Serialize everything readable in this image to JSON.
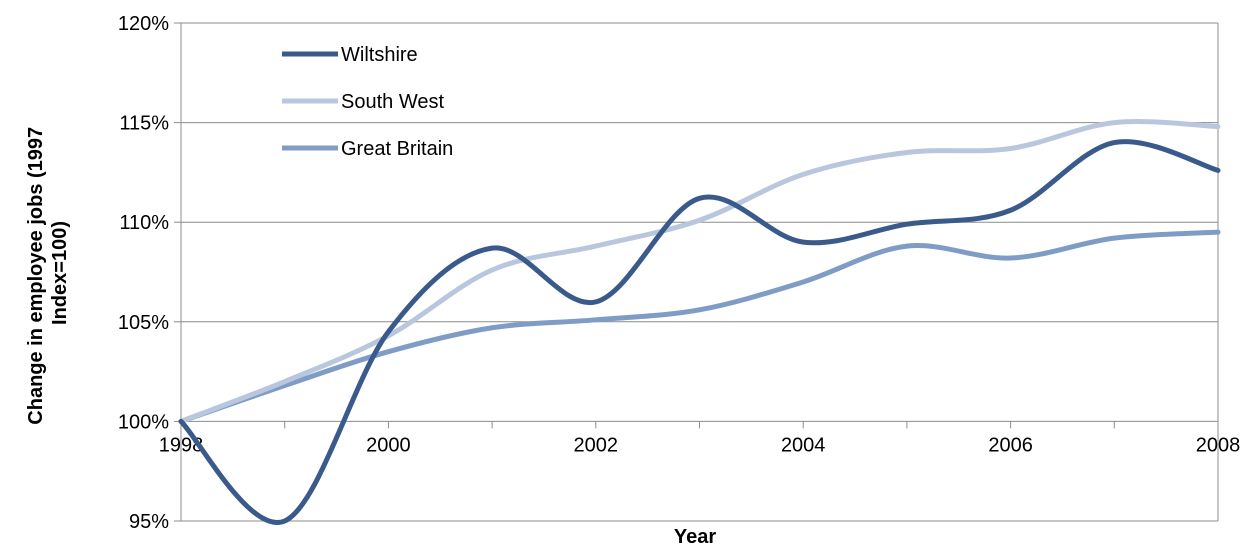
{
  "chart_data": {
    "type": "line",
    "xlabel": "Year",
    "ylabel_lines": [
      "Change in employee jobs (1997",
      "Index=100)"
    ],
    "x": [
      1998,
      1999,
      2000,
      2001,
      2002,
      2003,
      2004,
      2005,
      2006,
      2007,
      2008
    ],
    "x_tick_labels": [
      "1998",
      "2000",
      "2002",
      "2004",
      "2006",
      "2008"
    ],
    "xlim": [
      1998,
      2008
    ],
    "ylim": [
      95,
      120
    ],
    "y_ticks": [
      95,
      100,
      105,
      110,
      115,
      120
    ],
    "y_tick_labels": [
      "95%",
      "100%",
      "105%",
      "110%",
      "115%",
      "120%"
    ],
    "grid": true,
    "legend_position": "top-left",
    "series": [
      {
        "name": "Wiltshire",
        "color": "#3a5a8c",
        "values": [
          100,
          95,
          104.5,
          108.7,
          106,
          111.2,
          109,
          109.9,
          110.6,
          114,
          112.6
        ]
      },
      {
        "name": "South West",
        "color": "#b9c7de",
        "values": [
          100,
          102,
          104.3,
          107.6,
          108.8,
          110.1,
          112.4,
          113.5,
          113.7,
          115,
          114.8
        ]
      },
      {
        "name": "Great Britain",
        "color": "#7f9cc7",
        "values": [
          100,
          101.8,
          103.5,
          104.7,
          105.1,
          105.6,
          107,
          108.8,
          108.2,
          109.2,
          109.5
        ]
      }
    ]
  }
}
